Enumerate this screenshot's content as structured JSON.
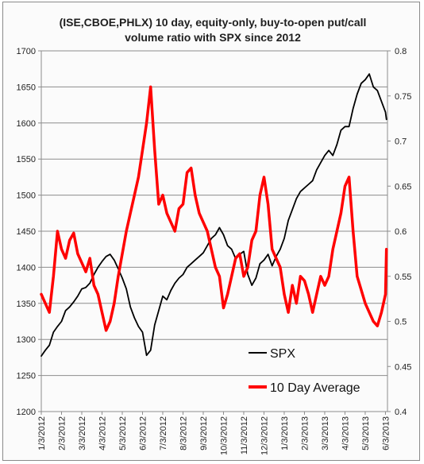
{
  "chart_data": {
    "type": "line",
    "title_lines": [
      "(ISE,CBOE,PHLX) 10 day, equity-only, buy-to-open put/call",
      "volume ratio with SPX since 2012"
    ],
    "x_tick_labels": [
      "1/3/2012",
      "2/3/2012",
      "3/3/2012",
      "4/3/2012",
      "5/3/2012",
      "6/3/2012",
      "7/3/2012",
      "8/3/2012",
      "9/3/2012",
      "10/3/2012",
      "11/3/2012",
      "12/3/2012",
      "1/3/2013",
      "2/3/2013",
      "3/3/2013",
      "4/3/2013",
      "5/3/2013",
      "6/3/2013"
    ],
    "x_ticks_months": [
      0,
      1,
      2,
      3,
      4,
      5,
      6,
      7,
      8,
      9,
      10,
      11,
      12,
      13,
      14,
      15,
      16,
      17
    ],
    "x_range_months": [
      0,
      17.1
    ],
    "y_left": {
      "min": 1200,
      "max": 1700,
      "ticks": [
        1200,
        1250,
        1300,
        1350,
        1400,
        1450,
        1500,
        1550,
        1600,
        1650,
        1700
      ],
      "tick_labels": [
        "1200",
        "1250",
        "1300",
        "1350",
        "1400",
        "1450",
        "1500",
        "1550",
        "1600",
        "1650",
        "1700"
      ]
    },
    "y_right": {
      "min": 0.4,
      "max": 0.8,
      "ticks": [
        0.4,
        0.45,
        0.5,
        0.55,
        0.6,
        0.65,
        0.7,
        0.75,
        0.8
      ],
      "tick_labels": [
        "0.4",
        "0.45",
        "0.5",
        "0.55",
        "0.6",
        "0.65",
        "0.7",
        "0.75",
        "0.8"
      ]
    },
    "grid": "horizontal",
    "legend_position": "bottom-right",
    "series": [
      {
        "name": "SPX",
        "axis": "left",
        "color": "#000000",
        "x": [
          0,
          0.2,
          0.4,
          0.6,
          0.8,
          1,
          1.2,
          1.4,
          1.6,
          1.8,
          2,
          2.2,
          2.4,
          2.6,
          2.8,
          3,
          3.2,
          3.4,
          3.6,
          3.8,
          4,
          4.2,
          4.4,
          4.6,
          4.8,
          5,
          5.2,
          5.4,
          5.6,
          5.8,
          6,
          6.2,
          6.4,
          6.6,
          6.8,
          7,
          7.2,
          7.4,
          7.6,
          7.8,
          8,
          8.2,
          8.4,
          8.6,
          8.8,
          9,
          9.2,
          9.4,
          9.6,
          9.8,
          10,
          10.2,
          10.4,
          10.6,
          10.8,
          11,
          11.2,
          11.4,
          11.6,
          11.8,
          12,
          12.2,
          12.4,
          12.6,
          12.8,
          13,
          13.2,
          13.4,
          13.6,
          13.8,
          14,
          14.2,
          14.4,
          14.6,
          14.8,
          15,
          15.2,
          15.4,
          15.6,
          15.8,
          16,
          16.2,
          16.4,
          16.6,
          16.8,
          17,
          17.05
        ],
        "values": [
          1277,
          1285,
          1292,
          1310,
          1318,
          1325,
          1340,
          1345,
          1352,
          1360,
          1370,
          1372,
          1378,
          1390,
          1400,
          1408,
          1415,
          1418,
          1410,
          1398,
          1385,
          1370,
          1345,
          1330,
          1318,
          1310,
          1278,
          1285,
          1320,
          1340,
          1360,
          1355,
          1368,
          1378,
          1385,
          1390,
          1400,
          1405,
          1410,
          1415,
          1420,
          1430,
          1440,
          1445,
          1455,
          1445,
          1430,
          1425,
          1412,
          1418,
          1422,
          1390,
          1375,
          1385,
          1405,
          1410,
          1418,
          1402,
          1415,
          1425,
          1440,
          1465,
          1480,
          1495,
          1505,
          1510,
          1515,
          1520,
          1535,
          1545,
          1555,
          1562,
          1555,
          1570,
          1590,
          1595,
          1595,
          1620,
          1640,
          1655,
          1660,
          1668,
          1650,
          1645,
          1630,
          1615,
          1605
        ]
      },
      {
        "name": "10 Day Average",
        "axis": "right",
        "color": "#ff0000",
        "x": [
          0,
          0.2,
          0.4,
          0.6,
          0.8,
          1,
          1.2,
          1.4,
          1.6,
          1.8,
          2,
          2.2,
          2.4,
          2.6,
          2.8,
          3,
          3.2,
          3.4,
          3.6,
          3.8,
          4,
          4.2,
          4.4,
          4.6,
          4.8,
          5,
          5.2,
          5.4,
          5.6,
          5.8,
          6,
          6.2,
          6.4,
          6.6,
          6.8,
          7,
          7.2,
          7.4,
          7.6,
          7.8,
          8,
          8.2,
          8.4,
          8.6,
          8.8,
          9,
          9.2,
          9.4,
          9.6,
          9.8,
          10,
          10.2,
          10.4,
          10.6,
          10.8,
          11,
          11.2,
          11.4,
          11.6,
          11.8,
          12,
          12.2,
          12.4,
          12.6,
          12.8,
          13,
          13.2,
          13.4,
          13.6,
          13.8,
          14,
          14.2,
          14.4,
          14.6,
          14.8,
          15,
          15.2,
          15.4,
          15.6,
          15.8,
          16,
          16.2,
          16.4,
          16.6,
          16.8,
          17,
          17.05
        ],
        "values": [
          0.53,
          0.52,
          0.51,
          0.55,
          0.6,
          0.58,
          0.57,
          0.59,
          0.598,
          0.575,
          0.565,
          0.555,
          0.57,
          0.54,
          0.53,
          0.51,
          0.49,
          0.5,
          0.52,
          0.55,
          0.575,
          0.6,
          0.62,
          0.64,
          0.66,
          0.69,
          0.72,
          0.76,
          0.69,
          0.63,
          0.64,
          0.62,
          0.61,
          0.6,
          0.625,
          0.63,
          0.665,
          0.67,
          0.64,
          0.62,
          0.61,
          0.6,
          0.58,
          0.56,
          0.55,
          0.515,
          0.53,
          0.55,
          0.57,
          0.575,
          0.55,
          0.56,
          0.59,
          0.6,
          0.64,
          0.66,
          0.63,
          0.58,
          0.57,
          0.56,
          0.53,
          0.51,
          0.54,
          0.52,
          0.55,
          0.545,
          0.53,
          0.51,
          0.53,
          0.55,
          0.54,
          0.55,
          0.58,
          0.6,
          0.62,
          0.65,
          0.66,
          0.6,
          0.55,
          0.535,
          0.52,
          0.51,
          0.5,
          0.495,
          0.51,
          0.53,
          0.58
        ]
      }
    ]
  }
}
